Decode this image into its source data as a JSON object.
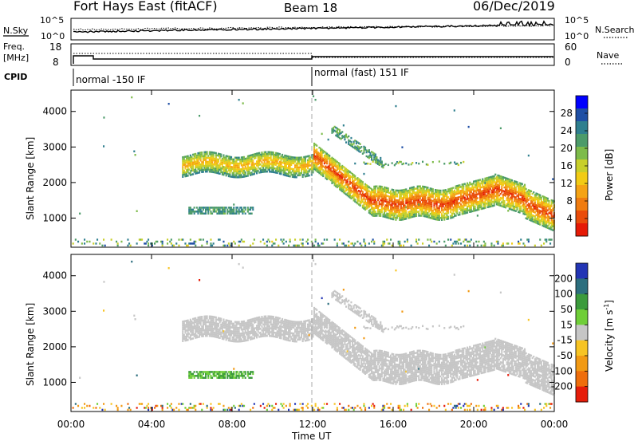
{
  "header": {
    "radar_title": "Fort Hays East (fitACF)",
    "beam": "Beam 18",
    "date": "06/Dec/2019"
  },
  "noise_panel": {
    "left_label": "N.Sky",
    "right_label": "N.Search",
    "left_ticks": [
      "10^5",
      "10^0"
    ],
    "right_ticks": [
      "10^5",
      "10^0"
    ]
  },
  "freq_panel": {
    "left_label_1": "Freq.",
    "left_label_2": "[MHz]",
    "right_label": "Nave",
    "left_ticks": [
      "18",
      "8"
    ],
    "right_ticks": [
      "60",
      "0"
    ]
  },
  "cpid_panel": {
    "label": "CPID",
    "mode_1": "normal -150 IF",
    "mode_2": "normal (fast) 151 IF"
  },
  "chart_data": [
    {
      "type": "heatmap",
      "title": "",
      "parameter": "Power",
      "xlabel": "",
      "ylabel": "Slant Range [km]",
      "xlim_hours_ut": [
        0,
        24
      ],
      "ylim_km": [
        180,
        4600
      ],
      "y_ticks": [
        "1000",
        "2000",
        "3000",
        "4000"
      ],
      "colorbar_label": "Power [dB]",
      "colorbar_ticks": [
        "4",
        "8",
        "12",
        "16",
        "20",
        "24",
        "28"
      ],
      "colorbar_colors": [
        "#0000ff",
        "#1f4fa5",
        "#2f7f8f",
        "#4c9b6a",
        "#7dbb4a",
        "#c8cf2a",
        "#f2cb14",
        "#f5a314",
        "#f07c10",
        "#ea4c0a",
        "#e61a06"
      ],
      "features": [
        {
          "name": "main band",
          "t_hours": [
            5.5,
            12.0
          ],
          "range_km": [
            2300,
            2800
          ],
          "level_db": "14-22"
        },
        {
          "name": "descending band",
          "t_hours": [
            12.0,
            24.0
          ],
          "range_km": [
            2800,
            1000
          ],
          "level_db": "18-28"
        },
        {
          "name": "upper branch",
          "t_hours": [
            12.9,
            15.0
          ],
          "range_km": [
            3500,
            2500
          ],
          "level_db": "6-14"
        },
        {
          "name": "lower echo",
          "t_hours": [
            5.8,
            9.0
          ],
          "range_km": [
            1100,
            1300
          ],
          "level_db": "6-12"
        },
        {
          "name": "ground scatter base",
          "t_hours": [
            0,
            24
          ],
          "range_km": [
            200,
            400
          ],
          "level_db": "4-16"
        }
      ]
    },
    {
      "type": "heatmap",
      "title": "",
      "parameter": "Velocity",
      "xlabel": "Time UT",
      "ylabel": "Slant Range [km]",
      "x_ticks": [
        "00:00",
        "04:00",
        "08:00",
        "12:00",
        "16:00",
        "20:00",
        "00:00"
      ],
      "xlim_hours_ut": [
        0,
        24
      ],
      "ylim_km": [
        180,
        4600
      ],
      "y_ticks": [
        "1000",
        "2000",
        "3000",
        "4000"
      ],
      "colorbar_label": "Velocity [m s^-1]",
      "colorbar_label_main": "Velocity [m s",
      "colorbar_label_sup": "-1",
      "colorbar_label_end": "]",
      "colorbar_ticks": [
        "200",
        "100",
        "50",
        "15",
        "-15",
        "-50",
        "-100",
        "-200"
      ],
      "colorbar_colors": [
        "#2335b5",
        "#2c6e7e",
        "#3c9b3c",
        "#6fce38",
        "#c6c6c6",
        "#f7c424",
        "#f29a14",
        "#ef6e0c",
        "#e61d0a"
      ],
      "features": [
        {
          "name": "main band",
          "t_hours": [
            5.5,
            12.0
          ],
          "range_km": [
            2300,
            2800
          ],
          "velocity_ms": "-15 to 15"
        },
        {
          "name": "descending band",
          "t_hours": [
            12.0,
            24.0
          ],
          "range_km": [
            2800,
            1000
          ],
          "velocity_ms": "-15 to 15"
        },
        {
          "name": "lower echo",
          "t_hours": [
            5.8,
            9.0
          ],
          "range_km": [
            1100,
            1300
          ],
          "velocity_ms": "15 to 50"
        }
      ]
    }
  ]
}
